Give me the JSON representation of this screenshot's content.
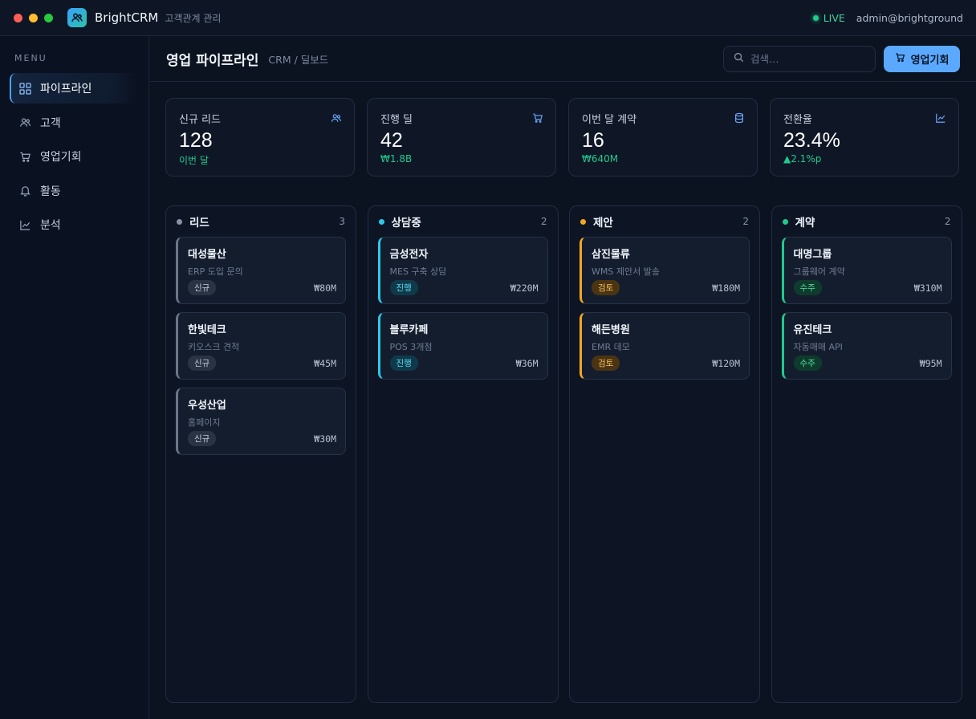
{
  "app": {
    "name": "BrightCRM",
    "subtitle": "고객관계 관리",
    "live_label": "LIVE",
    "user": "admin@brightground"
  },
  "sidebar": {
    "menu_title": "MENU",
    "items": [
      {
        "label": "파이프라인",
        "icon": "grid-icon",
        "active": true
      },
      {
        "label": "고객",
        "icon": "users-icon",
        "active": false
      },
      {
        "label": "영업기회",
        "icon": "cart-icon",
        "active": false
      },
      {
        "label": "활동",
        "icon": "bell-icon",
        "active": false
      },
      {
        "label": "분석",
        "icon": "chart-icon",
        "active": false
      }
    ]
  },
  "header": {
    "title": "영업 파이프라인",
    "breadcrumb": "CRM / 딜보드",
    "search_placeholder": "검색…",
    "primary_button": "영업기회"
  },
  "kpis": [
    {
      "label": "신규 리드",
      "value": "128",
      "sub": "이번 달",
      "icon": "users-icon"
    },
    {
      "label": "진행 딜",
      "value": "42",
      "sub": "₩1.8B",
      "icon": "cart-icon"
    },
    {
      "label": "이번 달 계약",
      "value": "16",
      "sub": "₩640M",
      "icon": "database-icon"
    },
    {
      "label": "전환율",
      "value": "23.4%",
      "sub": "▲2.1%p",
      "icon": "chart-icon"
    }
  ],
  "colors": {
    "lead": "#8a93a6",
    "consult": "#2ec7e8",
    "proposal": "#f5a524",
    "contract": "#22c98a",
    "accent": "#5aa9ff"
  },
  "columns": [
    {
      "name": "리드",
      "count": "3",
      "color": "#8a93a6",
      "cards": [
        {
          "name": "대성물산",
          "desc": "ERP 도입 문의",
          "tag": "신규",
          "amount": "₩80M"
        },
        {
          "name": "한빛테크",
          "desc": "키오스크 견적",
          "tag": "신규",
          "amount": "₩45M"
        },
        {
          "name": "우성산업",
          "desc": "홈페이지",
          "tag": "신규",
          "amount": "₩30M"
        }
      ]
    },
    {
      "name": "상담중",
      "count": "2",
      "color": "#2ec7e8",
      "cards": [
        {
          "name": "금성전자",
          "desc": "MES 구축 상담",
          "tag": "진행",
          "amount": "₩220M"
        },
        {
          "name": "블루카페",
          "desc": "POS 3개점",
          "tag": "진행",
          "amount": "₩36M"
        }
      ]
    },
    {
      "name": "제안",
      "count": "2",
      "color": "#f5a524",
      "cards": [
        {
          "name": "삼진물류",
          "desc": "WMS 제안서 발송",
          "tag": "검토",
          "amount": "₩180M"
        },
        {
          "name": "해든병원",
          "desc": "EMR 데모",
          "tag": "검토",
          "amount": "₩120M"
        }
      ]
    },
    {
      "name": "계약",
      "count": "2",
      "color": "#22c98a",
      "cards": [
        {
          "name": "대명그룹",
          "desc": "그룹웨어 계약",
          "tag": "수주",
          "amount": "₩310M"
        },
        {
          "name": "유진테크",
          "desc": "자동매매 API",
          "tag": "수주",
          "amount": "₩95M"
        }
      ]
    }
  ]
}
